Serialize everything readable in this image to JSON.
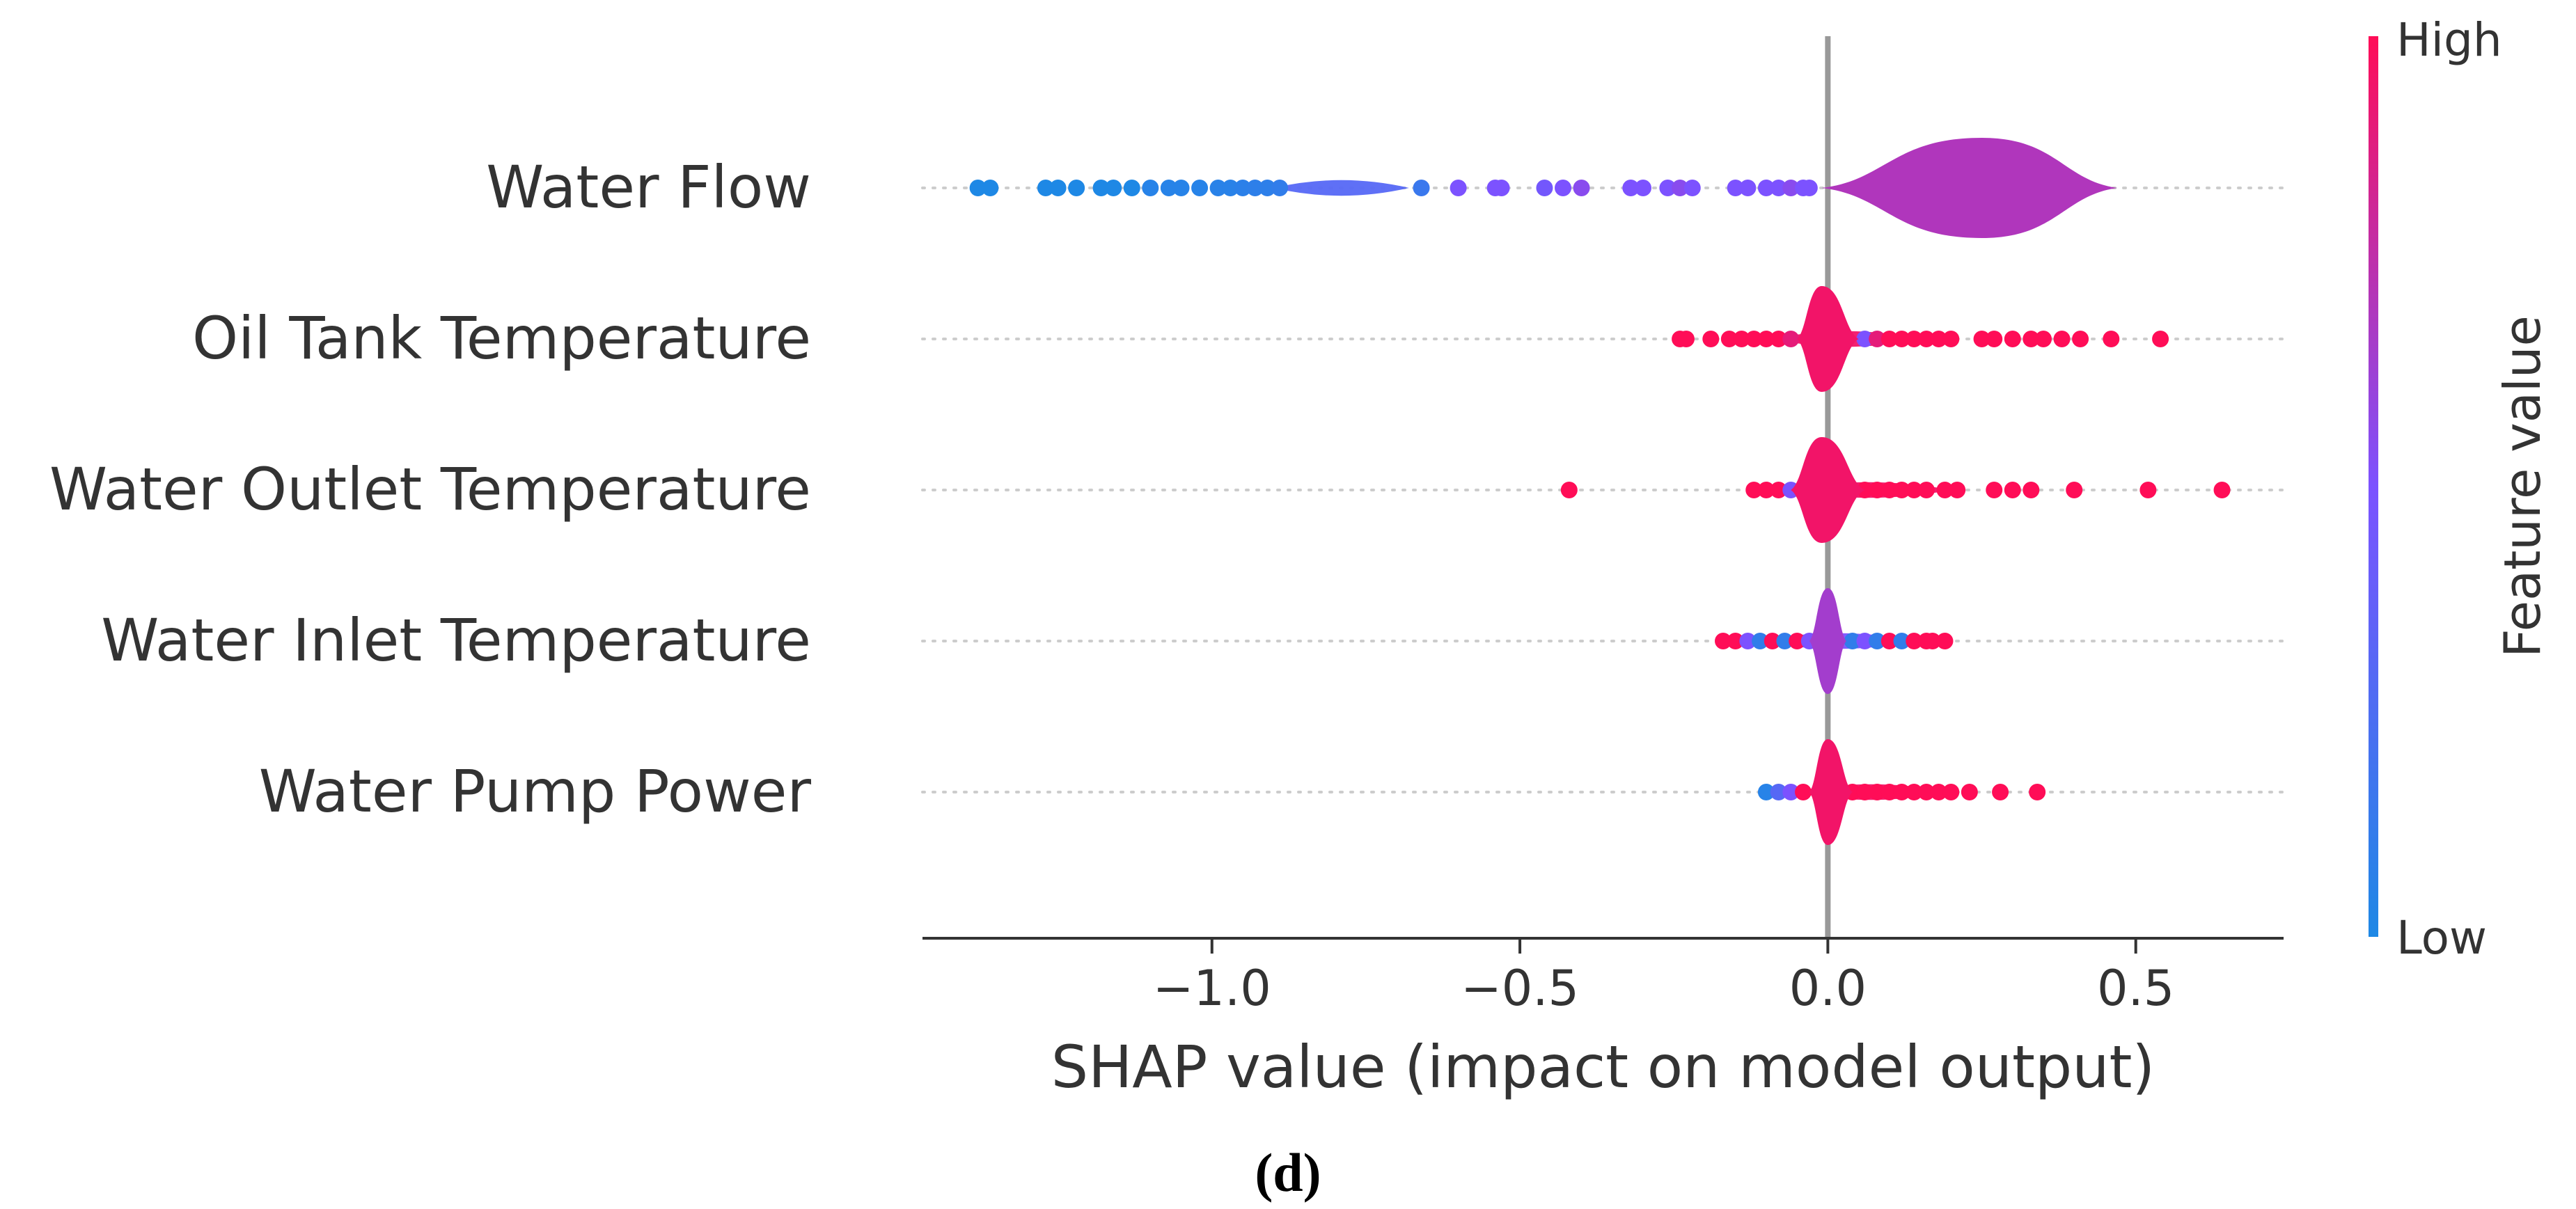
{
  "chart_data": {
    "type": "scatter",
    "subtype": "shap-beeswarm-violin",
    "title": "",
    "xlabel": "SHAP value (impact on model output)",
    "xlim": [
      -1.47,
      0.74
    ],
    "xticks": [
      -1.0,
      -0.5,
      0.0,
      0.5
    ],
    "xtick_labels": [
      "−1.0",
      "−0.5",
      "0.0",
      "0.5"
    ],
    "colorbar": {
      "label": "Feature value",
      "high_label": "High",
      "low_label": "Low",
      "low_color": "#1e88e5",
      "high_color": "#ff0d57"
    },
    "features": [
      {
        "name": "Water Flow",
        "violin": {
          "center": 0.25,
          "min": -0.01,
          "max": 0.47,
          "half_height": 0.36,
          "color": 0.7
        },
        "points": [
          [
            -1.38,
            0.0
          ],
          [
            -1.36,
            0.0
          ],
          [
            -1.27,
            0.0
          ],
          [
            -1.25,
            0.0
          ],
          [
            -1.22,
            0.0
          ],
          [
            -1.18,
            0.0
          ],
          [
            -1.16,
            0.0
          ],
          [
            -1.13,
            0.0
          ],
          [
            -1.1,
            0.05
          ],
          [
            -1.07,
            0.05
          ],
          [
            -1.05,
            0.05
          ],
          [
            -1.02,
            0.05
          ],
          [
            -0.99,
            0.06
          ],
          [
            -0.97,
            0.06
          ],
          [
            -0.95,
            0.07
          ],
          [
            -0.93,
            0.08
          ],
          [
            -0.91,
            0.08
          ],
          [
            -0.89,
            0.1
          ],
          [
            -0.66,
            0.15
          ],
          [
            -0.6,
            0.5
          ],
          [
            -0.54,
            0.5
          ],
          [
            -0.53,
            0.5
          ],
          [
            -0.46,
            0.45
          ],
          [
            -0.43,
            0.5
          ],
          [
            -0.4,
            0.55
          ],
          [
            -0.32,
            0.5
          ],
          [
            -0.3,
            0.5
          ],
          [
            -0.26,
            0.5
          ],
          [
            -0.24,
            0.55
          ],
          [
            -0.22,
            0.5
          ],
          [
            -0.15,
            0.5
          ],
          [
            -0.13,
            0.5
          ],
          [
            -0.1,
            0.5
          ],
          [
            -0.08,
            0.5
          ],
          [
            -0.06,
            0.55
          ],
          [
            -0.04,
            0.5
          ],
          [
            -0.03,
            0.5
          ]
        ],
        "dense": [
          -0.9,
          -0.68,
          0.22
        ],
        "dense_color": 0.3
      },
      {
        "name": "Oil Tank Temperature",
        "violin": {
          "center": -0.01,
          "min": -0.05,
          "max": 0.05,
          "half_height": 0.38,
          "color": 0.95
        },
        "points": [
          [
            -0.24,
            1.0
          ],
          [
            -0.23,
            1.0
          ],
          [
            -0.19,
            1.0
          ],
          [
            -0.16,
            1.0
          ],
          [
            -0.14,
            1.0
          ],
          [
            -0.12,
            1.0
          ],
          [
            -0.1,
            1.0
          ],
          [
            -0.08,
            1.0
          ],
          [
            -0.06,
            0.9
          ],
          [
            0.06,
            0.5
          ],
          [
            0.08,
            0.9
          ],
          [
            0.1,
            1.0
          ],
          [
            0.12,
            1.0
          ],
          [
            0.14,
            1.0
          ],
          [
            0.16,
            1.0
          ],
          [
            0.18,
            1.0
          ],
          [
            0.2,
            1.0
          ],
          [
            0.25,
            1.0
          ],
          [
            0.27,
            1.0
          ],
          [
            0.3,
            1.0
          ],
          [
            0.33,
            1.0
          ],
          [
            0.35,
            1.0
          ],
          [
            0.38,
            1.0
          ],
          [
            0.41,
            1.0
          ],
          [
            0.46,
            1.0
          ],
          [
            0.54,
            1.0
          ]
        ],
        "dense": [
          -0.09,
          0.15,
          0.0
        ],
        "dense_color": 0.95
      },
      {
        "name": "Water Outlet Temperature",
        "violin": {
          "center": -0.01,
          "min": -0.06,
          "max": 0.06,
          "half_height": 0.38,
          "color": 0.95
        },
        "points": [
          [
            -0.42,
            1.0
          ],
          [
            -0.12,
            1.0
          ],
          [
            -0.1,
            1.0
          ],
          [
            -0.08,
            1.0
          ],
          [
            -0.06,
            0.5
          ],
          [
            -0.04,
            1.0
          ],
          [
            0.06,
            1.0
          ],
          [
            0.08,
            1.0
          ],
          [
            0.1,
            1.0
          ],
          [
            0.12,
            1.0
          ],
          [
            0.14,
            1.0
          ],
          [
            0.16,
            1.0
          ],
          [
            0.19,
            1.0
          ],
          [
            0.21,
            1.0
          ],
          [
            0.27,
            1.0
          ],
          [
            0.3,
            1.0
          ],
          [
            0.33,
            1.0
          ],
          [
            0.4,
            1.0
          ],
          [
            0.52,
            1.0
          ],
          [
            0.64,
            1.0
          ]
        ],
        "dense": [
          -0.07,
          0.2,
          0.0
        ],
        "dense_color": 0.95
      },
      {
        "name": "Water Inlet Temperature",
        "violin": {
          "center": 0.0,
          "min": -0.03,
          "max": 0.03,
          "half_height": 0.38,
          "color": 0.65
        },
        "points": [
          [
            -0.17,
            1.0
          ],
          [
            -0.15,
            1.0
          ],
          [
            -0.13,
            0.5
          ],
          [
            -0.11,
            0.1
          ],
          [
            -0.09,
            1.0
          ],
          [
            -0.07,
            0.1
          ],
          [
            -0.05,
            1.0
          ],
          [
            -0.03,
            0.5
          ],
          [
            0.04,
            0.1
          ],
          [
            0.06,
            0.5
          ],
          [
            0.08,
            0.1
          ],
          [
            0.1,
            1.0
          ],
          [
            0.12,
            0.1
          ],
          [
            0.14,
            1.0
          ],
          [
            0.16,
            1.0
          ],
          [
            0.17,
            1.0
          ],
          [
            0.19,
            1.0
          ]
        ],
        "dense": [
          -0.12,
          0.15,
          0.5
        ],
        "dense_color": 0.5
      },
      {
        "name": "Water Pump Power",
        "violin": {
          "center": 0.0,
          "min": -0.03,
          "max": 0.04,
          "half_height": 0.38,
          "color": 0.95
        },
        "points": [
          [
            -0.1,
            0.05
          ],
          [
            -0.08,
            0.3
          ],
          [
            -0.06,
            0.5
          ],
          [
            -0.04,
            1.0
          ],
          [
            0.04,
            1.0
          ],
          [
            0.06,
            1.0
          ],
          [
            0.08,
            1.0
          ],
          [
            0.1,
            1.0
          ],
          [
            0.12,
            1.0
          ],
          [
            0.14,
            1.0
          ],
          [
            0.16,
            1.0
          ],
          [
            0.18,
            1.0
          ],
          [
            0.2,
            1.0
          ],
          [
            0.23,
            1.0
          ],
          [
            0.28,
            1.0
          ],
          [
            0.34,
            1.0
          ]
        ],
        "dense": [
          -0.06,
          0.2,
          0.0
        ],
        "dense_color": 0.95
      }
    ]
  },
  "caption": "(d)"
}
